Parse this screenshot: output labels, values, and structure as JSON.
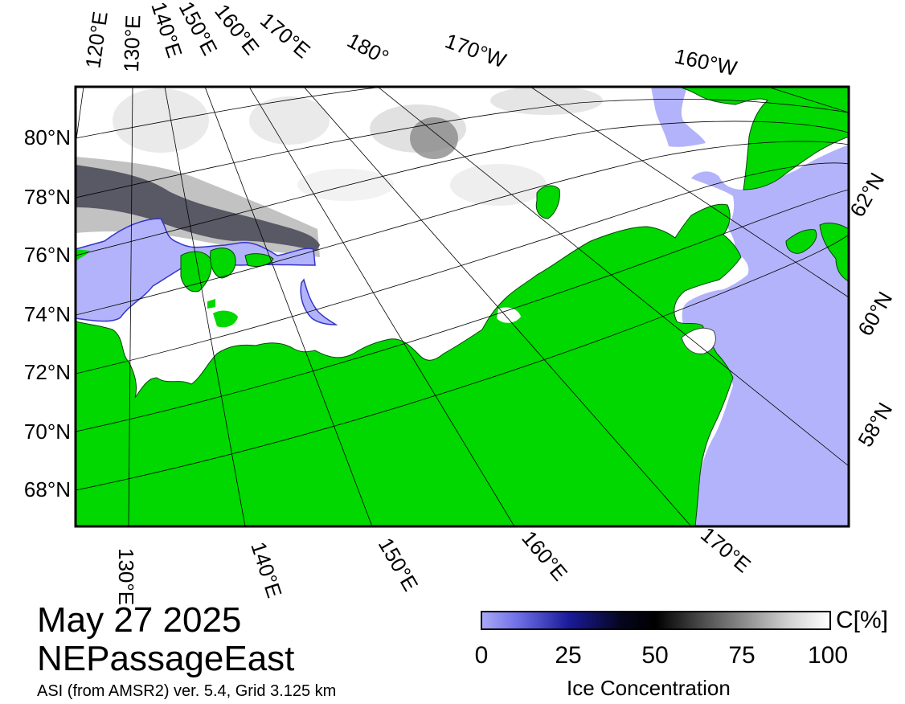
{
  "map": {
    "colors": {
      "land": "#00d800",
      "open_water": "#b3b3fb",
      "ice_high": "#ffffff",
      "ice_low": "#000000",
      "frame": "#000000"
    },
    "lat_labels_left": [
      "80°N",
      "78°N",
      "76°N",
      "74°N",
      "72°N",
      "70°N",
      "68°N"
    ],
    "lat_labels_right": [
      "62°N",
      "60°N",
      "58°N"
    ],
    "lon_labels_top": [
      "120°E",
      "130°E",
      "140°E",
      "150°E",
      "160°E",
      "170°E",
      "180°",
      "170°W",
      "160°W"
    ],
    "lon_labels_bottom": [
      "130°E",
      "140°E",
      "150°E",
      "160°E",
      "170°E"
    ]
  },
  "titles": {
    "date": "May 27 2025",
    "region": "NEPassageEast",
    "source": "ASI (from AMSR2) ver. 5.4,  Grid 3.125 km"
  },
  "colorbar": {
    "ticks": [
      "0",
      "25",
      "50",
      "75",
      "100"
    ],
    "unit": "C[%]",
    "label": "Ice Concentration"
  }
}
